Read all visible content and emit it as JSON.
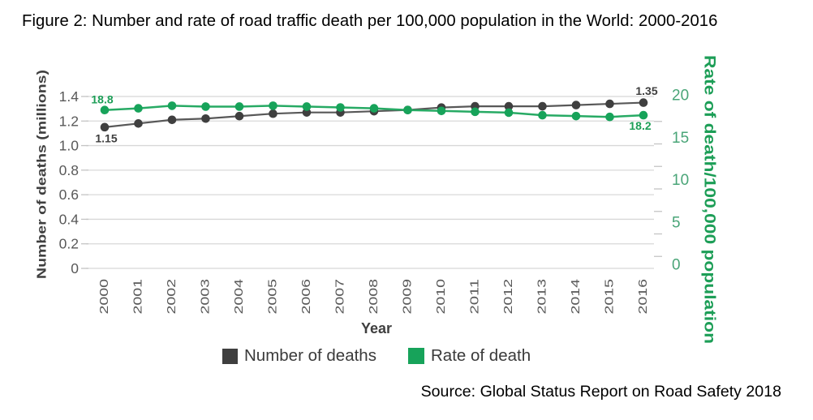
{
  "figure": {
    "title": "Figure 2: Number and rate of road traffic death per 100,000 population in the World: 2000-2016",
    "source_note": "Source: Global Status Report on Road Safety 2018"
  },
  "colors": {
    "deaths_series": "#3f3f3f",
    "deaths_line": "#585858",
    "rate_series": "#17a35a",
    "rate_line": "#27aa64",
    "gridline": "#d8d8d8",
    "tick": "#c4c4c4",
    "axis_tick_label": "#595959",
    "right_axis_label": "#4aa578",
    "axis_title": "#3f3f3f",
    "right_axis_title": "#1d9e57",
    "annotation_deaths": "#3f3f3f",
    "annotation_rate": "#1d9e57",
    "title_text": "#000000"
  },
  "chart_data": {
    "type": "line",
    "title": "Figure 2: Number and rate of road traffic death per 100,000 population in the World: 2000-2016",
    "x": [
      2000,
      2001,
      2002,
      2003,
      2004,
      2005,
      2006,
      2007,
      2008,
      2009,
      2010,
      2011,
      2012,
      2013,
      2014,
      2015,
      2016
    ],
    "x_tick_labels": [
      "2000",
      "2001",
      "2002",
      "2003",
      "2004",
      "2005",
      "2006",
      "2007",
      "2008",
      "2009",
      "2010",
      "2011",
      "2012",
      "2013",
      "2014",
      "2015",
      "2016"
    ],
    "xlabel": "Year",
    "ylabel_left": "Number of deaths (millions)",
    "ylabel_right": "Rate of death/100,000 population",
    "ylim_left": [
      0,
      1.4
    ],
    "yticks_left": [
      0,
      0.2,
      0.4,
      0.6,
      0.8,
      1.0,
      1.2,
      1.4
    ],
    "ytick_labels_left": [
      "0",
      "0.2",
      "0.4",
      "0.6",
      "0.8",
      "1.0",
      "1.2",
      "1.4"
    ],
    "ylim_right": [
      0,
      20
    ],
    "yticks_right": [
      0,
      5,
      10,
      15,
      20
    ],
    "ytick_labels_right": [
      "0",
      "5",
      "10",
      "15",
      "20"
    ],
    "grid": "horizontal",
    "legend_position": "bottom",
    "series": [
      {
        "name": "Number of deaths",
        "axis": "left",
        "marker": "circle",
        "values": [
          1.15,
          1.18,
          1.21,
          1.22,
          1.24,
          1.26,
          1.27,
          1.27,
          1.28,
          1.29,
          1.31,
          1.32,
          1.32,
          1.32,
          1.33,
          1.34,
          1.35
        ]
      },
      {
        "name": "Rate of death",
        "axis": "right",
        "marker": "circle",
        "values": [
          18.8,
          19.0,
          19.3,
          19.2,
          19.2,
          19.3,
          19.2,
          19.1,
          19.0,
          18.8,
          18.7,
          18.6,
          18.5,
          18.2,
          18.1,
          18.0,
          18.2
        ]
      }
    ],
    "annotations": [
      {
        "text": "18.8",
        "series": "Rate of death",
        "year": 2000
      },
      {
        "text": "1.15",
        "series": "Number of deaths",
        "year": 2000
      },
      {
        "text": "1.35",
        "series": "Number of deaths",
        "year": 2016
      },
      {
        "text": "18.2",
        "series": "Rate of death",
        "year": 2016
      }
    ],
    "legend": [
      "Number of deaths",
      "Rate of death"
    ]
  }
}
